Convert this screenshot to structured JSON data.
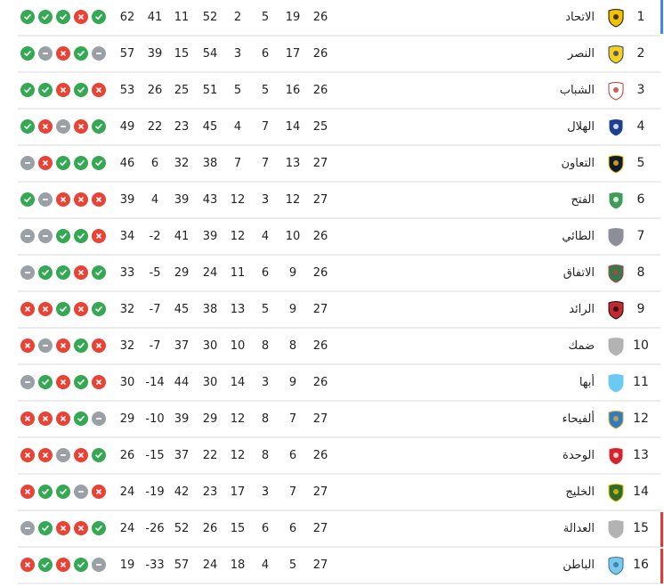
{
  "colors": {
    "win": "#34a853",
    "loss": "#ea4335",
    "draw": "#9aa0a6",
    "champion_zone": "#4285f4",
    "relegation_zone": "#e53935"
  },
  "form_legend": {
    "W": "check-icon",
    "L": "cross-icon",
    "D": "dash-icon"
  },
  "standings": [
    {
      "rank": "1",
      "team": "الاتحاد",
      "logo_color": "#f2c200",
      "logo_dark": "#111",
      "played": "26",
      "won": "19",
      "drawn": "5",
      "lost": "2",
      "gf": "52",
      "ga": "11",
      "gd": "41",
      "points": "62",
      "form": [
        "W",
        "W",
        "W",
        "L",
        "W"
      ],
      "zone": "champion"
    },
    {
      "rank": "2",
      "team": "النصر",
      "logo_color": "#f7d117",
      "logo_dark": "#1f3c8c",
      "played": "26",
      "won": "17",
      "drawn": "6",
      "lost": "3",
      "gf": "54",
      "ga": "15",
      "gd": "39",
      "points": "57",
      "form": [
        "W",
        "D",
        "L",
        "W",
        "D"
      ]
    },
    {
      "rank": "3",
      "team": "الشباب",
      "logo_color": "#ffffff",
      "logo_dark": "#c0392b",
      "played": "26",
      "won": "16",
      "drawn": "5",
      "lost": "5",
      "gf": "51",
      "ga": "25",
      "gd": "26",
      "points": "53",
      "form": [
        "W",
        "W",
        "L",
        "W",
        "L"
      ]
    },
    {
      "rank": "4",
      "team": "الهلال",
      "logo_color": "#1e3f8f",
      "logo_dark": "#ffffff",
      "played": "25",
      "won": "14",
      "drawn": "7",
      "lost": "4",
      "gf": "45",
      "ga": "23",
      "gd": "22",
      "points": "49",
      "form": [
        "W",
        "L",
        "D",
        "L",
        "W"
      ]
    },
    {
      "rank": "5",
      "team": "التعاون",
      "logo_color": "#111a33",
      "logo_dark": "#f2c200",
      "played": "27",
      "won": "13",
      "drawn": "7",
      "lost": "7",
      "gf": "38",
      "ga": "32",
      "gd": "6",
      "points": "46",
      "form": [
        "D",
        "L",
        "W",
        "W",
        "W"
      ]
    },
    {
      "rank": "6",
      "team": "الفتح",
      "logo_color": "#3f9b5a",
      "logo_dark": "#ffffff",
      "played": "27",
      "won": "12",
      "drawn": "3",
      "lost": "12",
      "gf": "43",
      "ga": "39",
      "gd": "4",
      "points": "39",
      "form": [
        "W",
        "D",
        "L",
        "L",
        "L"
      ]
    },
    {
      "rank": "7",
      "team": "الطائي",
      "logo_color": "#8e8e98",
      "logo_dark": "#8e8e98",
      "played": "26",
      "won": "10",
      "drawn": "4",
      "lost": "12",
      "gf": "39",
      "ga": "41",
      "gd": "-2",
      "points": "34",
      "form": [
        "D",
        "D",
        "W",
        "W",
        "L"
      ]
    },
    {
      "rank": "8",
      "team": "الاتفاق",
      "logo_color": "#2e7d4f",
      "logo_dark": "#d0343a",
      "played": "26",
      "won": "9",
      "drawn": "6",
      "lost": "11",
      "gf": "24",
      "ga": "29",
      "gd": "-5",
      "points": "33",
      "form": [
        "D",
        "W",
        "W",
        "L",
        "W"
      ]
    },
    {
      "rank": "9",
      "team": "الرائد",
      "logo_color": "#c62832",
      "logo_dark": "#111",
      "played": "27",
      "won": "9",
      "drawn": "5",
      "lost": "13",
      "gf": "38",
      "ga": "45",
      "gd": "-7",
      "points": "32",
      "form": [
        "L",
        "L",
        "W",
        "L",
        "W"
      ]
    },
    {
      "rank": "10",
      "team": "ضمك",
      "logo_color": "#b3b3b3",
      "logo_dark": "#b3b3b3",
      "played": "26",
      "won": "8",
      "drawn": "8",
      "lost": "10",
      "gf": "30",
      "ga": "37",
      "gd": "-7",
      "points": "32",
      "form": [
        "L",
        "D",
        "L",
        "W",
        "L"
      ]
    },
    {
      "rank": "11",
      "team": "أبها",
      "logo_color": "#6cc9f2",
      "logo_dark": "#6cc9f2",
      "played": "26",
      "won": "9",
      "drawn": "3",
      "lost": "14",
      "gf": "30",
      "ga": "44",
      "gd": "-14",
      "points": "30",
      "form": [
        "D",
        "W",
        "L",
        "W",
        "L"
      ]
    },
    {
      "rank": "12",
      "team": "ألفيحاء",
      "logo_color": "#2b7fc0",
      "logo_dark": "#f0a030",
      "played": "27",
      "won": "7",
      "drawn": "8",
      "lost": "12",
      "gf": "29",
      "ga": "39",
      "gd": "-10",
      "points": "29",
      "form": [
        "L",
        "L",
        "L",
        "W",
        "D"
      ]
    },
    {
      "rank": "13",
      "team": "الوحدة",
      "logo_color": "#d8232f",
      "logo_dark": "#ffffff",
      "played": "26",
      "won": "6",
      "drawn": "8",
      "lost": "12",
      "gf": "22",
      "ga": "37",
      "gd": "-15",
      "points": "26",
      "form": [
        "L",
        "L",
        "D",
        "L",
        "W"
      ]
    },
    {
      "rank": "14",
      "team": "الخليج",
      "logo_color": "#2f6b2b",
      "logo_dark": "#f2c200",
      "played": "27",
      "won": "7",
      "drawn": "3",
      "lost": "17",
      "gf": "23",
      "ga": "42",
      "gd": "-19",
      "points": "24",
      "form": [
        "L",
        "W",
        "W",
        "D",
        "L"
      ]
    },
    {
      "rank": "15",
      "team": "العدالة",
      "logo_color": "#b3b3b3",
      "logo_dark": "#b3b3b3",
      "played": "27",
      "won": "6",
      "drawn": "6",
      "lost": "15",
      "gf": "26",
      "ga": "52",
      "gd": "-26",
      "points": "24",
      "form": [
        "D",
        "W",
        "L",
        "L",
        "W"
      ],
      "zone": "relegation"
    },
    {
      "rank": "16",
      "team": "الباطن",
      "logo_color": "#7cc8e8",
      "logo_dark": "#2f6fa3",
      "played": "27",
      "won": "5",
      "drawn": "4",
      "lost": "18",
      "gf": "24",
      "ga": "57",
      "gd": "-33",
      "points": "19",
      "form": [
        "L",
        "W",
        "L",
        "W",
        "D"
      ],
      "zone": "relegation"
    }
  ]
}
